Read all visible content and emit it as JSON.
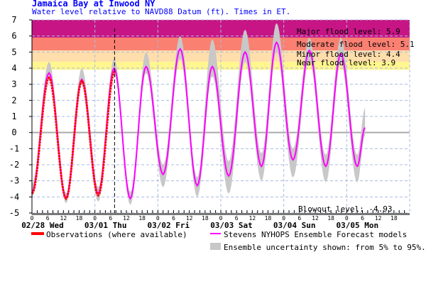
{
  "header": {
    "title": "Jamaica Bay at Inwood NY",
    "subtitle": "Water level relative to NAVD88 Datum (ft). Times in ET."
  },
  "chart_data": {
    "type": "line",
    "title": "Jamaica Bay at Inwood NY",
    "subtitle": "Water level relative to NAVD88 Datum (ft). Times in ET.",
    "ylim": [
      -5,
      7
    ],
    "yticks": [
      "7",
      "6",
      "5",
      "4",
      "3",
      "2",
      "1",
      "0",
      "-1",
      "-2",
      "-3",
      "-4",
      "-5"
    ],
    "xrange": [
      "02/28 00:00",
      "03/06 00:00"
    ],
    "hour_ticks": [
      "0",
      "6",
      "12",
      "18"
    ],
    "day_labels": [
      "02/28 Wed",
      "03/01 Thu",
      "03/02 Fri",
      "03/03 Sat",
      "03/04 Sun",
      "03/05 Mon"
    ],
    "grid": true,
    "now_marker": "03/01 07:30",
    "flood_levels": [
      {
        "label": "Major flood level: 5.9",
        "from": 5.9,
        "to": 7,
        "color": "#c71585"
      },
      {
        "label": "Moderate flood level: 5.1",
        "from": 5.1,
        "to": 5.9,
        "color": "#fa8072"
      },
      {
        "label": "Minor flood level: 4.4",
        "from": 4.4,
        "to": 5.1,
        "color": "#ffdeab"
      },
      {
        "label": "Near flood level: 3.9",
        "from": 3.9,
        "to": 4.4,
        "color": "#fff68f"
      }
    ],
    "blowout_label": "Blowout level: -4.93",
    "blowout_level": -4.93,
    "series": [
      {
        "name": "Observations (where available)",
        "color": "#ff0000",
        "extremes": [
          [
            "02/28 00:00",
            -3.8
          ],
          [
            "02/28 06:30",
            3.4
          ],
          [
            "02/28 13:00",
            -4.1
          ],
          [
            "02/28 19:00",
            3.2
          ],
          [
            "03/01 01:15",
            -3.9
          ],
          [
            "03/01 07:30",
            3.8
          ]
        ]
      },
      {
        "name": "Stevens NYHOPS Ensemble Forecast models",
        "color": "#ff00ff",
        "extremes": [
          [
            "02/28 00:00",
            -3.7
          ],
          [
            "02/28 06:30",
            3.7
          ],
          [
            "02/28 13:00",
            -4.1
          ],
          [
            "02/28 19:00",
            3.3
          ],
          [
            "03/01 01:15",
            -3.8
          ],
          [
            "03/01 07:20",
            4.0
          ],
          [
            "03/01 13:30",
            -4.1
          ],
          [
            "03/01 19:30",
            4.1
          ],
          [
            "03/02 02:00",
            -2.6
          ],
          [
            "03/02 08:30",
            5.2
          ],
          [
            "03/02 15:00",
            -3.3
          ],
          [
            "03/02 20:45",
            4.1
          ],
          [
            "03/03 03:00",
            -2.7
          ],
          [
            "03/03 09:15",
            5.0
          ],
          [
            "03/03 15:30",
            -2.1
          ],
          [
            "03/03 21:15",
            5.6
          ],
          [
            "03/04 03:30",
            -1.7
          ],
          [
            "03/04 09:45",
            5.1
          ],
          [
            "03/04 16:00",
            -2.1
          ],
          [
            "03/04 21:45",
            4.9
          ],
          [
            "03/05 04:00",
            -2.1
          ],
          [
            "03/05 07:00",
            0.3
          ]
        ]
      },
      {
        "name": "Ensemble uncertainty shown: from 5% to 95%.",
        "color": "#c8c8c8",
        "extremes_low_high": [
          [
            "02/28 00:00",
            -4.0,
            -3.2
          ],
          [
            "02/28 06:30",
            3.3,
            4.4
          ],
          [
            "02/28 13:00",
            -4.4,
            -3.8
          ],
          [
            "02/28 19:00",
            3.0,
            4.0
          ],
          [
            "03/01 01:15",
            -4.3,
            -3.4
          ],
          [
            "03/01 07:20",
            3.6,
            4.6
          ],
          [
            "03/01 13:30",
            -4.5,
            -3.7
          ],
          [
            "03/01 19:30",
            3.7,
            5.0
          ],
          [
            "03/02 02:00",
            -3.4,
            -2.0
          ],
          [
            "03/02 08:30",
            4.6,
            6.0
          ],
          [
            "03/02 15:00",
            -4.0,
            -2.8
          ],
          [
            "03/02 20:45",
            3.5,
            5.8
          ],
          [
            "03/03 03:00",
            -3.8,
            -1.8
          ],
          [
            "03/03 09:15",
            4.4,
            6.4
          ],
          [
            "03/03 15:30",
            -3.0,
            -1.3
          ],
          [
            "03/03 21:15",
            5.0,
            6.8
          ],
          [
            "03/04 03:30",
            -2.8,
            -1.0
          ],
          [
            "03/04 09:45",
            4.5,
            5.9
          ],
          [
            "03/04 16:00",
            -3.1,
            -1.4
          ],
          [
            "03/04 21:45",
            4.3,
            5.9
          ],
          [
            "03/05 04:00",
            -3.1,
            -1.4
          ],
          [
            "03/05 07:00",
            -0.2,
            1.5
          ]
        ]
      }
    ],
    "legend": "bottom"
  }
}
